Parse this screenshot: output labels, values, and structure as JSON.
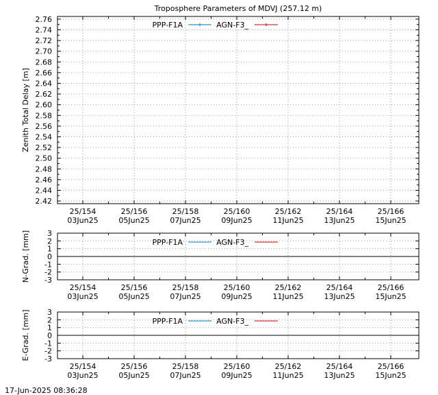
{
  "timestamp": "17-Jun-2025 08:36:28",
  "chart_data": [
    {
      "type": "line",
      "title": "Troposphere Parameters of MDVJ (257.12 m)",
      "ylabel": "Zenith Total Delay [m]",
      "xlabel": "",
      "ylim": [
        2.415,
        2.765
      ],
      "yticks": [
        "2.42",
        "2.44",
        "2.46",
        "2.48",
        "2.50",
        "2.52",
        "2.54",
        "2.56",
        "2.58",
        "2.60",
        "2.62",
        "2.64",
        "2.66",
        "2.68",
        "2.70",
        "2.72",
        "2.74",
        "2.76"
      ],
      "xticks_top": [
        "25/154",
        "25/156",
        "25/158",
        "25/160",
        "25/162",
        "25/164",
        "25/166"
      ],
      "xticks_bottom": [
        "03Jun25",
        "05Jun25",
        "07Jun25",
        "09Jun25",
        "11Jun25",
        "13Jun25",
        "15Jun25"
      ],
      "grid": true,
      "legend": "top-center",
      "series": [
        {
          "name": "PPP-F1A",
          "color": "#0072bd",
          "values": []
        },
        {
          "name": "AGN-F3_",
          "color": "#cc0000",
          "values": []
        }
      ]
    },
    {
      "type": "line",
      "title": "",
      "ylabel": "N-Grad. [mm]",
      "xlabel": "",
      "ylim": [
        -3,
        3
      ],
      "yticks": [
        "3",
        "2",
        "1",
        "0",
        "-1",
        "-2",
        "-3"
      ],
      "xticks_top": [
        "25/154",
        "25/156",
        "25/158",
        "25/160",
        "25/162",
        "25/164",
        "25/166"
      ],
      "xticks_bottom": [
        "03Jun25",
        "05Jun25",
        "07Jun25",
        "09Jun25",
        "11Jun25",
        "13Jun25",
        "15Jun25"
      ],
      "grid": true,
      "legend": "top-center",
      "series": [
        {
          "name": "PPP-F1A",
          "color": "#0072bd",
          "values": []
        },
        {
          "name": "AGN-F3_",
          "color": "#cc0000",
          "values": []
        }
      ]
    },
    {
      "type": "line",
      "title": "",
      "ylabel": "E-Grad. [mm]",
      "xlabel": "",
      "ylim": [
        -3,
        3
      ],
      "yticks": [
        "3",
        "2",
        "1",
        "0",
        "-1",
        "-2",
        "-3"
      ],
      "xticks_top": [
        "25/154",
        "25/156",
        "25/158",
        "25/160",
        "25/162",
        "25/164",
        "25/166"
      ],
      "xticks_bottom": [
        "03Jun25",
        "05Jun25",
        "07Jun25",
        "09Jun25",
        "11Jun25",
        "13Jun25",
        "15Jun25"
      ],
      "grid": true,
      "legend": "top-center",
      "series": [
        {
          "name": "PPP-F1A",
          "color": "#0072bd",
          "values": []
        },
        {
          "name": "AGN-F3_",
          "color": "#cc0000",
          "values": []
        }
      ]
    }
  ]
}
